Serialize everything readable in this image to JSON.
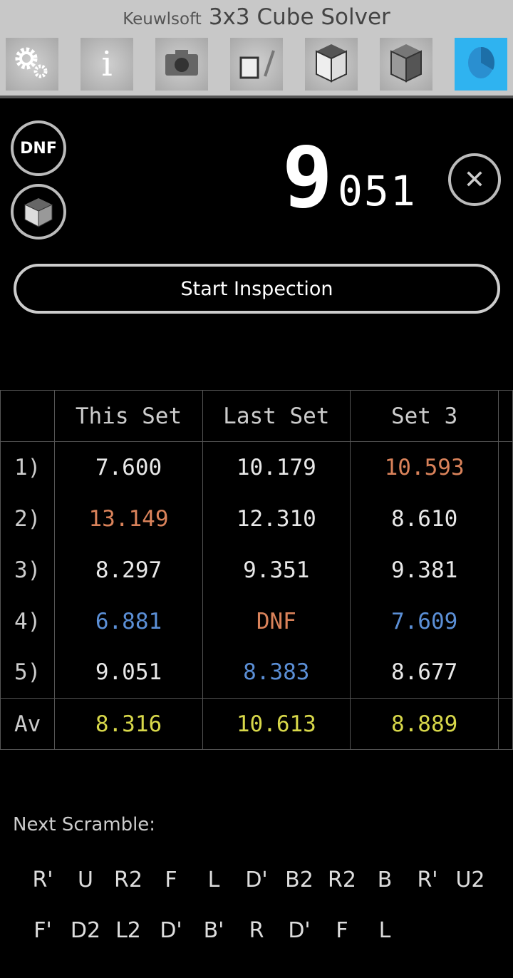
{
  "header": {
    "brand": "Keuwlsoft",
    "title": "3x3 Cube Solver"
  },
  "toolbar": [
    {
      "name": "settings",
      "icon": "gears-icon"
    },
    {
      "name": "info",
      "icon": "info-icon"
    },
    {
      "name": "camera",
      "icon": "camera-icon"
    },
    {
      "name": "edit-cube",
      "icon": "cube-pencil-icon"
    },
    {
      "name": "solve-cube",
      "icon": "cube-icon"
    },
    {
      "name": "scramble-cube",
      "icon": "cube-scramble-icon"
    },
    {
      "name": "timer",
      "icon": "timer-icon",
      "active": true
    }
  ],
  "dnf_label": "DNF",
  "timer": {
    "seconds": "9",
    "fraction": "051"
  },
  "start_label": "Start Inspection",
  "table": {
    "headers": [
      "",
      "This Set",
      "Last Set",
      "Set 3"
    ],
    "rows": [
      {
        "label": "1)",
        "cells": [
          {
            "v": "7.600",
            "c": "#e8e8e8"
          },
          {
            "v": "10.179",
            "c": "#e8e8e8"
          },
          {
            "v": "10.593",
            "c": "#d9825a"
          }
        ]
      },
      {
        "label": "2)",
        "cells": [
          {
            "v": "13.149",
            "c": "#d9825a"
          },
          {
            "v": "12.310",
            "c": "#e8e8e8"
          },
          {
            "v": "8.610",
            "c": "#e8e8e8"
          }
        ]
      },
      {
        "label": "3)",
        "cells": [
          {
            "v": "8.297",
            "c": "#e8e8e8"
          },
          {
            "v": "9.351",
            "c": "#e8e8e8"
          },
          {
            "v": "9.381",
            "c": "#e8e8e8"
          }
        ]
      },
      {
        "label": "4)",
        "cells": [
          {
            "v": "6.881",
            "c": "#5b8fd6"
          },
          {
            "v": "DNF",
            "c": "#d9825a"
          },
          {
            "v": "7.609",
            "c": "#5b8fd6"
          }
        ]
      },
      {
        "label": "5)",
        "cells": [
          {
            "v": "9.051",
            "c": "#e8e8e8"
          },
          {
            "v": "8.383",
            "c": "#5b8fd6"
          },
          {
            "v": "8.677",
            "c": "#e8e8e8"
          }
        ]
      }
    ],
    "average": {
      "label": "Av",
      "cells": [
        {
          "v": "8.316",
          "c": "#d8d84a"
        },
        {
          "v": "10.613",
          "c": "#d8d84a"
        },
        {
          "v": "8.889",
          "c": "#d8d84a"
        }
      ]
    }
  },
  "scramble": {
    "label": "Next Scramble:",
    "moves": [
      "R'",
      "U",
      "R2",
      "F",
      "L",
      "D'",
      "B2",
      "R2",
      "B",
      "R'",
      "U2",
      "F'",
      "D2",
      "L2",
      "D'",
      "B'",
      "R",
      "D'",
      "F",
      "L"
    ]
  }
}
